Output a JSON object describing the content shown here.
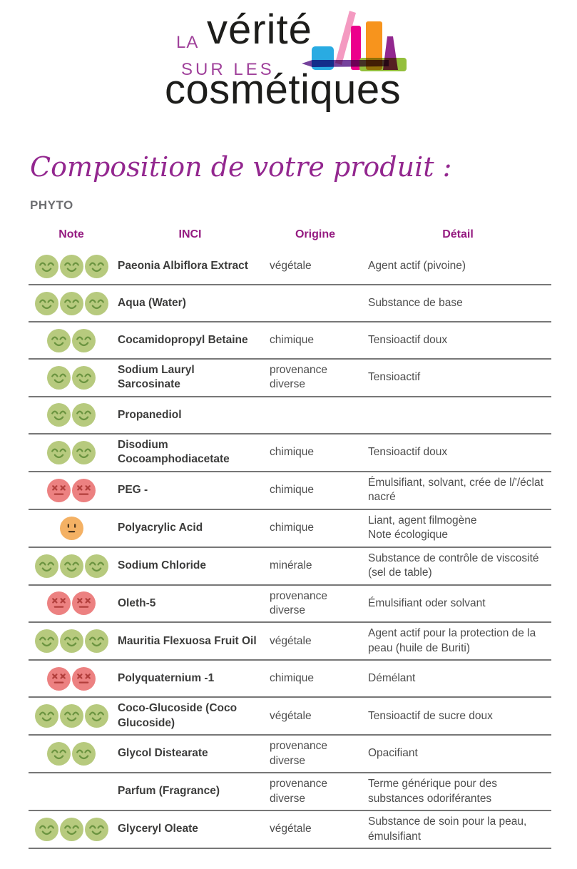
{
  "logo": {
    "la": "LA",
    "verite": "vérité",
    "sur_les": "SUR LES",
    "cosmetiques": "cosmétiques",
    "icons": [
      "jar",
      "mascara-wand",
      "mascara-tube",
      "makeup-base",
      "cream-tube",
      "lipstick",
      "eyeliner-pencil"
    ]
  },
  "page": {
    "title": "Composition de votre produit :",
    "product_name": "PHYTO"
  },
  "table": {
    "headers": {
      "note": "Note",
      "inci": "INCI",
      "origine": "Origine",
      "detail": "Détail"
    },
    "rows": [
      {
        "note": {
          "type": "good",
          "count": 3
        },
        "inci": "Paeonia Albiflora Extract",
        "origine": "végétale",
        "detail": "Agent actif (pivoine)"
      },
      {
        "note": {
          "type": "good",
          "count": 3
        },
        "inci": "Aqua (Water)",
        "origine": "",
        "detail": "Substance de base"
      },
      {
        "note": {
          "type": "good",
          "count": 2
        },
        "inci": "Cocamidopropyl Betaine",
        "origine": "chimique",
        "detail": "Tensioactif doux"
      },
      {
        "note": {
          "type": "good",
          "count": 2
        },
        "inci": "Sodium Lauryl Sarcosinate",
        "origine": "provenance diverse",
        "detail": "Tensioactif"
      },
      {
        "note": {
          "type": "good",
          "count": 2
        },
        "inci": "Propanediol",
        "origine": "",
        "detail": ""
      },
      {
        "note": {
          "type": "good",
          "count": 2
        },
        "inci": "Disodium Cocoamphodiacetate",
        "origine": "chimique",
        "detail": "Tensioactif doux"
      },
      {
        "note": {
          "type": "bad",
          "count": 2
        },
        "inci": "PEG -",
        "origine": "chimique",
        "detail": "Émulsifiant, solvant, crée de l/'/éclat nacré"
      },
      {
        "note": {
          "type": "neutral",
          "count": 1
        },
        "inci": "Polyacrylic Acid",
        "origine": "chimique",
        "detail": "Liant, agent filmogène\nNote écologique"
      },
      {
        "note": {
          "type": "good",
          "count": 3
        },
        "inci": "Sodium Chloride",
        "origine": "minérale",
        "detail": "Substance de contrôle de viscosité (sel de table)"
      },
      {
        "note": {
          "type": "bad",
          "count": 2
        },
        "inci": "Oleth-5",
        "origine": "provenance diverse",
        "detail": "Émulsifiant oder solvant"
      },
      {
        "note": {
          "type": "good",
          "count": 3
        },
        "inci": "Mauritia Flexuosa Fruit Oil",
        "origine": "végétale",
        "detail": "Agent actif pour la protection de la peau (huile de Buriti)"
      },
      {
        "note": {
          "type": "bad",
          "count": 2
        },
        "inci": "Polyquaternium -1",
        "origine": "chimique",
        "detail": "Démélant"
      },
      {
        "note": {
          "type": "good",
          "count": 3
        },
        "inci": "Coco-Glucoside (Coco Glucoside)",
        "origine": "végétale",
        "detail": "Tensioactif de sucre doux"
      },
      {
        "note": {
          "type": "good",
          "count": 2
        },
        "inci": "Glycol Distearate",
        "origine": "provenance diverse",
        "detail": "Opacifiant"
      },
      {
        "note": {
          "type": "none",
          "count": 0
        },
        "inci": "Parfum (Fragrance)",
        "origine": "provenance diverse",
        "detail": "Terme générique pour des substances odoriférantes"
      },
      {
        "note": {
          "type": "good",
          "count": 3
        },
        "inci": "Glyceryl Oleate",
        "origine": "végétale",
        "detail": "Substance de soin pour la peau, émulsifiant"
      }
    ]
  },
  "colors": {
    "brand_purple": "#a0429b",
    "title_purple": "#93278f",
    "header_magenta": "#951b81",
    "text_dark": "#3c3c3b",
    "text_gray": "#4d4d4d",
    "product_gray": "#6d6e71",
    "divider_gray": "#777777",
    "faces": {
      "good": {
        "fill": "#b7ca7e",
        "stroke": "#6b9440"
      },
      "bad": {
        "fill": "#ec8181",
        "stroke": "#b23f3c"
      },
      "neutral": {
        "fill": "#f4b164",
        "stroke": "#50391f"
      }
    },
    "logo_icons": {
      "jar_blue": "#29abe2",
      "wand_pink": "#f49ac1",
      "tube_magenta": "#ec008c",
      "tube_orange": "#f7941d",
      "lipstick_purple": "#92278f",
      "base_green": "#94bf3c",
      "pencil_purple": "#662d91"
    }
  }
}
